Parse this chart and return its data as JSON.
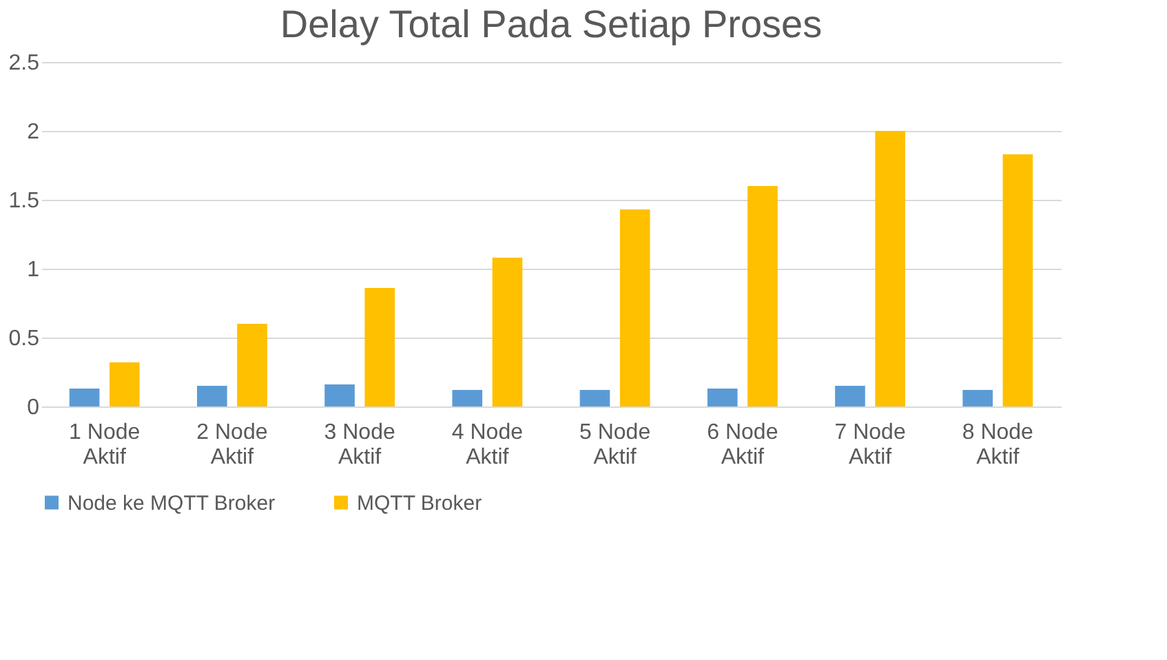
{
  "chart_data": {
    "type": "bar",
    "title": "Delay Total Pada Setiap Proses",
    "categories": [
      "1 Node Aktif",
      "2 Node Aktif",
      "3 Node Aktif",
      "4 Node Aktif",
      "5 Node Aktif",
      "6 Node Aktif",
      "7 Node Aktif",
      "8 Node Aktif"
    ],
    "series": [
      {
        "name": "Node ke MQTT Broker",
        "color": "#5b9bd5",
        "values": [
          0.13,
          0.15,
          0.16,
          0.12,
          0.12,
          0.13,
          0.15,
          0.12
        ]
      },
      {
        "name": "MQTT Broker",
        "color": "#ffc000",
        "values": [
          0.32,
          0.6,
          0.86,
          1.08,
          1.43,
          1.6,
          2.0,
          1.83
        ]
      }
    ],
    "ylim": [
      0,
      2.5
    ],
    "yticks": [
      0,
      0.5,
      1,
      1.5,
      2,
      2.5
    ],
    "grid": "y",
    "legend": "bottom"
  }
}
